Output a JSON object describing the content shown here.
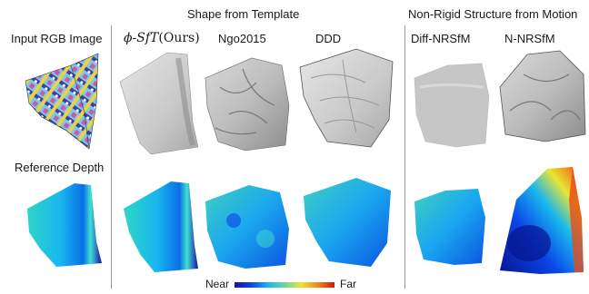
{
  "headers": {
    "sft_group": "Shape from Template",
    "nrsfm_group": "Non-Rigid Structure from Motion"
  },
  "columns": {
    "input": "Input RGB Image",
    "reference": "Reference Depth",
    "ours_sym": "ϕ-SfT",
    "ours_tag": "(Ours)",
    "ngo": "Ngo2015",
    "ddd": "DDD",
    "diff_nrsfm": "Diff-NRSfM",
    "n_nrsfm": "N-NRSfM"
  },
  "colorbar": {
    "near": "Near",
    "far": "Far",
    "colors": [
      "#1b10a8",
      "#0a45e6",
      "#18b6ef",
      "#6ad6a0",
      "#e8e534",
      "#f08a1a",
      "#d11212"
    ]
  }
}
